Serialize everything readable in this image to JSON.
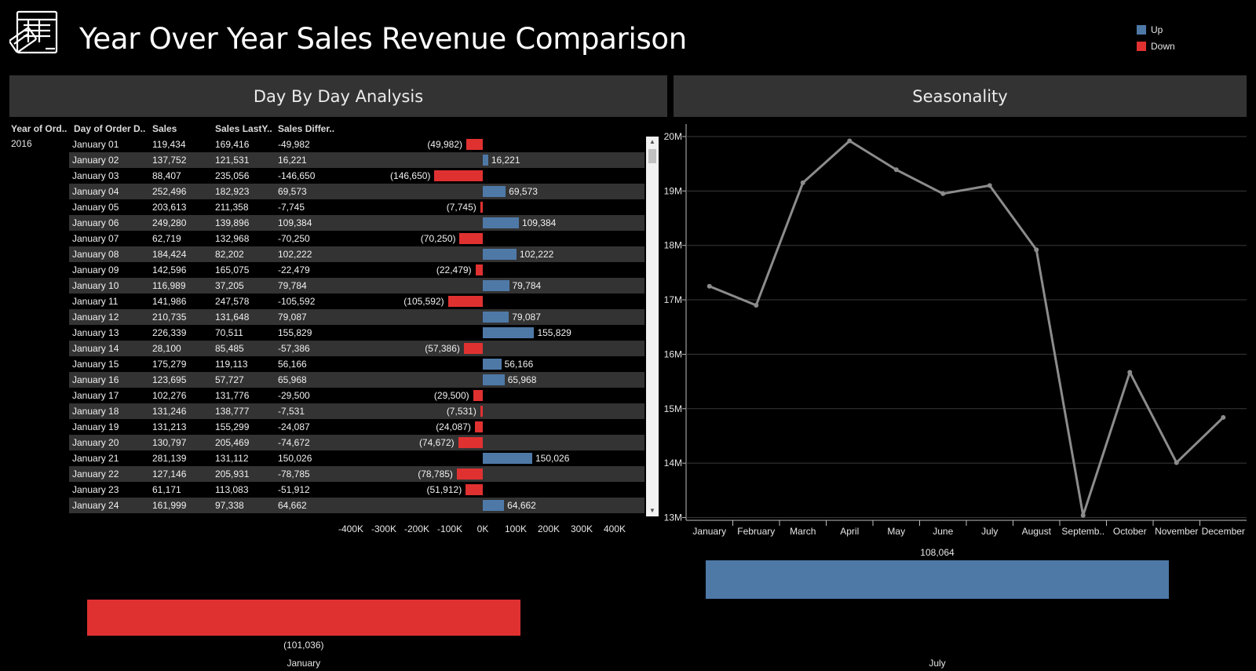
{
  "header": {
    "title": "Year Over Year Sales Revenue Comparison",
    "logo_icon": "sales-register-icon"
  },
  "legend": {
    "items": [
      {
        "label": "Up",
        "color": "#4e79a7"
      },
      {
        "label": "Down",
        "color": "#e03131"
      }
    ]
  },
  "panels": {
    "left_title": "Day By Day Analysis",
    "right_title": "Seasonality"
  },
  "table": {
    "columns": [
      "Year of Ord..",
      "Day of Order D..",
      "Sales",
      "Sales LastY..",
      "Sales Differ.."
    ],
    "year": "2016",
    "rows": [
      {
        "day": "January 01",
        "sales": "119,434",
        "last": "169,416",
        "diff_text": "-49,982",
        "diff": -49982,
        "bar_label": "(49,982)"
      },
      {
        "day": "January 02",
        "sales": "137,752",
        "last": "121,531",
        "diff_text": "16,221",
        "diff": 16221,
        "bar_label": "16,221"
      },
      {
        "day": "January 03",
        "sales": "88,407",
        "last": "235,056",
        "diff_text": "-146,650",
        "diff": -146650,
        "bar_label": "(146,650)"
      },
      {
        "day": "January 04",
        "sales": "252,496",
        "last": "182,923",
        "diff_text": "69,573",
        "diff": 69573,
        "bar_label": "69,573"
      },
      {
        "day": "January 05",
        "sales": "203,613",
        "last": "211,358",
        "diff_text": "-7,745",
        "diff": -7745,
        "bar_label": "(7,745)"
      },
      {
        "day": "January 06",
        "sales": "249,280",
        "last": "139,896",
        "diff_text": "109,384",
        "diff": 109384,
        "bar_label": "109,384"
      },
      {
        "day": "January 07",
        "sales": "62,719",
        "last": "132,968",
        "diff_text": "-70,250",
        "diff": -70250,
        "bar_label": "(70,250)"
      },
      {
        "day": "January 08",
        "sales": "184,424",
        "last": "82,202",
        "diff_text": "102,222",
        "diff": 102222,
        "bar_label": "102,222"
      },
      {
        "day": "January 09",
        "sales": "142,596",
        "last": "165,075",
        "diff_text": "-22,479",
        "diff": -22479,
        "bar_label": "(22,479)"
      },
      {
        "day": "January 10",
        "sales": "116,989",
        "last": "37,205",
        "diff_text": "79,784",
        "diff": 79784,
        "bar_label": "79,784"
      },
      {
        "day": "January 11",
        "sales": "141,986",
        "last": "247,578",
        "diff_text": "-105,592",
        "diff": -105592,
        "bar_label": "(105,592)"
      },
      {
        "day": "January 12",
        "sales": "210,735",
        "last": "131,648",
        "diff_text": "79,087",
        "diff": 79087,
        "bar_label": "79,087"
      },
      {
        "day": "January 13",
        "sales": "226,339",
        "last": "70,511",
        "diff_text": "155,829",
        "diff": 155829,
        "bar_label": "155,829"
      },
      {
        "day": "January 14",
        "sales": "28,100",
        "last": "85,485",
        "diff_text": "-57,386",
        "diff": -57386,
        "bar_label": "(57,386)"
      },
      {
        "day": "January 15",
        "sales": "175,279",
        "last": "119,113",
        "diff_text": "56,166",
        "diff": 56166,
        "bar_label": "56,166"
      },
      {
        "day": "January 16",
        "sales": "123,695",
        "last": "57,727",
        "diff_text": "65,968",
        "diff": 65968,
        "bar_label": "65,968"
      },
      {
        "day": "January 17",
        "sales": "102,276",
        "last": "131,776",
        "diff_text": "-29,500",
        "diff": -29500,
        "bar_label": "(29,500)"
      },
      {
        "day": "January 18",
        "sales": "131,246",
        "last": "138,777",
        "diff_text": "-7,531",
        "diff": -7531,
        "bar_label": "(7,531)"
      },
      {
        "day": "January 19",
        "sales": "131,213",
        "last": "155,299",
        "diff_text": "-24,087",
        "diff": -24087,
        "bar_label": "(24,087)"
      },
      {
        "day": "January 20",
        "sales": "130,797",
        "last": "205,469",
        "diff_text": "-74,672",
        "diff": -74672,
        "bar_label": "(74,672)"
      },
      {
        "day": "January 21",
        "sales": "281,139",
        "last": "131,112",
        "diff_text": "150,026",
        "diff": 150026,
        "bar_label": "150,026"
      },
      {
        "day": "January 22",
        "sales": "127,146",
        "last": "205,931",
        "diff_text": "-78,785",
        "diff": -78785,
        "bar_label": "(78,785)"
      },
      {
        "day": "January 23",
        "sales": "61,171",
        "last": "113,083",
        "diff_text": "-51,912",
        "diff": -51912,
        "bar_label": "(51,912)"
      },
      {
        "day": "January 24",
        "sales": "161,999",
        "last": "97,338",
        "diff_text": "64,662",
        "diff": 64662,
        "bar_label": "64,662"
      }
    ],
    "diff_axis_ticks": [
      "-400K",
      "-300K",
      "-200K",
      "-100K",
      "0K",
      "100K",
      "200K",
      "300K",
      "400K"
    ],
    "diff_axis_range": [
      -400000,
      400000
    ]
  },
  "chart_data": [
    {
      "type": "line",
      "title": "Seasonality",
      "categories": [
        "January",
        "February",
        "March",
        "April",
        "May",
        "June",
        "July",
        "August",
        "Septemb..",
        "October",
        "November",
        "December"
      ],
      "values": [
        17250000,
        16900000,
        19150000,
        19920000,
        19390000,
        18950000,
        19100000,
        17920000,
        13040000,
        15670000,
        14010000,
        14840000
      ],
      "y_ticks": [
        "13M",
        "14M",
        "15M",
        "16M",
        "17M",
        "18M",
        "19M",
        "20M"
      ],
      "ylim": [
        12950000,
        20230000
      ],
      "grid": true,
      "color": "#8c8c8c"
    },
    {
      "type": "bar",
      "categories": [
        "January"
      ],
      "values": [
        -101036
      ],
      "data_labels": [
        "(101,036)"
      ],
      "color": "#e03131"
    },
    {
      "type": "bar",
      "categories": [
        "July"
      ],
      "values": [
        108064
      ],
      "data_labels": [
        "108,064"
      ],
      "color": "#4e79a7"
    }
  ]
}
